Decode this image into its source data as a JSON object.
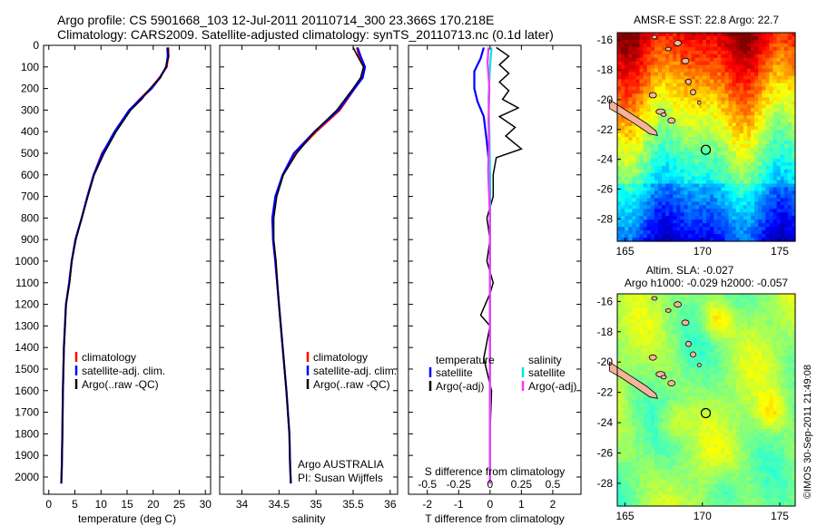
{
  "title_line1": "Argo profile: CS 5901668_103 12-Jul-2011 20110714_300 23.366S 170.218E",
  "title_line2": "Climatology: CARS2009. Satellite-adjusted climatology: synTS_20110713.nc (0.1d later)",
  "credit": "©IMOS 30-Sep-2011 21:49:08",
  "colors": {
    "climatology": "#ff0000",
    "satellite": "#0000ff",
    "argo": "#000000",
    "sat_salinity": "#00e5e5",
    "argo_salinity": "#ff33ff"
  },
  "chart_data": [
    {
      "type": "line",
      "name": "temperature",
      "xlabel": "temperature (deg C)",
      "xlim": [
        -1,
        31
      ],
      "ylim": [
        2080,
        0
      ],
      "xticks": [
        0,
        5,
        10,
        15,
        20,
        25,
        30
      ],
      "xtick_labels": [
        "0",
        "5",
        "10",
        "15",
        "20",
        "25",
        "30"
      ],
      "yticks": [
        0,
        100,
        200,
        300,
        400,
        500,
        600,
        700,
        800,
        900,
        1000,
        1100,
        1200,
        1300,
        1400,
        1500,
        1600,
        1700,
        1800,
        1900,
        2000
      ],
      "ytick_labels": [
        "0",
        "100",
        "200",
        "300",
        "400",
        "500",
        "600",
        "700",
        "800",
        "900",
        "1000",
        "1100",
        "1200",
        "1300",
        "1400",
        "1500",
        "1600",
        "1700",
        "1800",
        "1900",
        "2000"
      ],
      "legend": [
        "climatology",
        "satellite-adj. clim.",
        "Argo(..raw -QC)"
      ],
      "series": [
        {
          "name": "climatology",
          "color": "#ff0000",
          "x": [
            22.9,
            22.9,
            22.6,
            21.2,
            19.5,
            17.4,
            15.5,
            12.8,
            10.2,
            8.6,
            7.4,
            6.3,
            5.1,
            4.4,
            3.9,
            3.3,
            2.9,
            2.7,
            2.6,
            2.5,
            2.4
          ],
          "y": [
            10,
            50,
            100,
            150,
            200,
            250,
            300,
            400,
            500,
            600,
            700,
            800,
            900,
            1000,
            1100,
            1200,
            1400,
            1600,
            1800,
            1950,
            2030
          ]
        },
        {
          "name": "satellite-adj. clim.",
          "color": "#0000ff",
          "x": [
            22.7,
            22.8,
            22.5,
            21.3,
            19.7,
            17.5,
            15.4,
            12.6,
            10.3,
            8.6,
            7.4,
            6.3,
            5.1,
            4.4,
            3.9,
            3.3,
            2.9,
            2.7,
            2.6,
            2.5,
            2.4
          ],
          "y": [
            10,
            50,
            100,
            150,
            200,
            250,
            300,
            400,
            500,
            600,
            700,
            800,
            900,
            1000,
            1100,
            1200,
            1400,
            1600,
            1800,
            1950,
            2030
          ]
        },
        {
          "name": "Argo(..raw -QC)",
          "color": "#000000",
          "x": [
            22.8,
            23.0,
            22.4,
            21.4,
            19.4,
            17.8,
            15.7,
            12.9,
            10.6,
            8.7,
            7.5,
            6.3,
            5.2,
            4.4,
            4.0,
            3.3,
            2.9,
            2.7,
            2.6,
            2.5,
            2.4
          ],
          "y": [
            10,
            50,
            100,
            150,
            200,
            250,
            300,
            400,
            500,
            600,
            700,
            800,
            900,
            1000,
            1100,
            1200,
            1400,
            1600,
            1800,
            1950,
            2030
          ]
        }
      ]
    },
    {
      "type": "line",
      "name": "salinity",
      "xlabel": "salinity",
      "xlim": [
        33.7,
        36.1
      ],
      "ylim": [
        2080,
        0
      ],
      "xticks": [
        34,
        34.5,
        35,
        35.5,
        36
      ],
      "xtick_labels": [
        "34",
        "34.5",
        "35",
        "35.5",
        "36"
      ],
      "legend": [
        "climatology",
        "satellite-adj. clim.",
        "Argo(..raw -QC)"
      ],
      "annotation": [
        "Argo AUSTRALIA",
        "PI: Susan Wijffels"
      ],
      "series": [
        {
          "name": "climatology",
          "color": "#ff0000",
          "x": [
            35.55,
            35.58,
            35.65,
            35.62,
            35.52,
            35.32,
            35.0,
            34.72,
            34.55,
            34.46,
            34.42,
            34.42,
            34.45,
            34.5,
            34.55,
            34.6,
            34.64,
            34.65,
            34.66
          ],
          "y": [
            10,
            50,
            100,
            150,
            200,
            300,
            400,
            500,
            600,
            700,
            800,
            900,
            1000,
            1200,
            1400,
            1600,
            1800,
            1950,
            2030
          ]
        },
        {
          "name": "satellite-adj. clim.",
          "color": "#0000ff",
          "x": [
            35.56,
            35.6,
            35.66,
            35.63,
            35.52,
            35.3,
            34.98,
            34.7,
            34.55,
            34.45,
            34.41,
            34.42,
            34.45,
            34.5,
            34.55,
            34.6,
            34.64,
            34.65,
            34.66
          ],
          "y": [
            10,
            50,
            100,
            150,
            200,
            300,
            400,
            500,
            600,
            700,
            800,
            900,
            1000,
            1200,
            1400,
            1600,
            1800,
            1950,
            2030
          ]
        },
        {
          "name": "Argo(..raw -QC)",
          "color": "#000000",
          "x": [
            35.5,
            35.56,
            35.64,
            35.6,
            35.5,
            35.28,
            34.98,
            34.74,
            34.56,
            34.47,
            34.43,
            34.43,
            34.46,
            34.5,
            34.55,
            34.6,
            34.64,
            34.65,
            34.66
          ],
          "y": [
            10,
            50,
            100,
            150,
            200,
            300,
            400,
            500,
            600,
            700,
            800,
            900,
            1000,
            1200,
            1400,
            1600,
            1800,
            1950,
            2030
          ]
        }
      ]
    },
    {
      "type": "line",
      "name": "difference",
      "xlabel": "T difference from climatology",
      "xlabel_top": "S difference from climatology",
      "xlim": [
        -2.6,
        2.9
      ],
      "ylim": [
        2080,
        0
      ],
      "xticks": [
        -2,
        -1,
        0,
        1,
        2
      ],
      "xtick_labels": [
        "-2",
        "-1",
        "0",
        "1",
        "2"
      ],
      "sticks": [
        -0.5,
        -0.25,
        0,
        0.25,
        0.5
      ],
      "stick_labels": [
        "-0.5",
        "-0.25",
        "0",
        "0.25",
        "0.5"
      ],
      "legend_titles": [
        "temperature",
        "salinity"
      ],
      "legend": [
        "satellite",
        "Argo(-adj)",
        "satellite",
        "Argo(-adj)"
      ],
      "series": [
        {
          "name": "T satellite",
          "color": "#0000ff",
          "x": [
            -0.2,
            -0.3,
            -0.5,
            -0.5,
            -0.4,
            -0.2,
            -0.1,
            0.0,
            0.0,
            0.0,
            0.0,
            0.0,
            0.0
          ],
          "y": [
            10,
            60,
            120,
            200,
            260,
            330,
            450,
            600,
            800,
            1000,
            1400,
            1800,
            2030
          ]
        },
        {
          "name": "T Argo(-adj)",
          "color": "#000000",
          "x": [
            0.2,
            0.6,
            0.3,
            0.6,
            0.3,
            0.6,
            0.4,
            0.9,
            0.3,
            0.8,
            0.5,
            1.0,
            0.2,
            0.1,
            0.1,
            -0.1,
            0.0,
            -0.1,
            0.1,
            0.0,
            -0.3,
            0.0,
            -0.2,
            0.05,
            0.0,
            0.0
          ],
          "y": [
            10,
            50,
            90,
            130,
            170,
            210,
            250,
            290,
            330,
            380,
            420,
            480,
            520,
            600,
            700,
            800,
            900,
            1000,
            1100,
            1150,
            1250,
            1300,
            1450,
            1600,
            1800,
            2030
          ]
        },
        {
          "name": "S satellite",
          "color": "#00e5e5",
          "x": [
            0.05,
            0.0,
            -0.05,
            -0.02,
            0.0,
            0.0,
            0.0,
            0.0,
            0.0
          ],
          "y": [
            10,
            100,
            250,
            400,
            600,
            800,
            1200,
            1600,
            2030
          ]
        },
        {
          "name": "S Argo(-adj)",
          "color": "#ff33ff",
          "x": [
            -0.05,
            -0.08,
            -0.02,
            -0.05,
            -0.03,
            -0.06,
            0.0,
            0.0,
            0.0
          ],
          "y": [
            10,
            80,
            200,
            350,
            450,
            580,
            800,
            1200,
            2030
          ]
        }
      ]
    },
    {
      "type": "heatmap",
      "name": "sst_map",
      "title": "AMSR-E SST: 22.8 Argo: 22.7",
      "xlim": [
        164.5,
        176
      ],
      "ylim": [
        -29.5,
        -15.5
      ],
      "xticks": [
        165,
        170,
        175
      ],
      "xtick_labels": [
        "165",
        "170",
        "175"
      ],
      "yticks": [
        -16,
        -18,
        -20,
        -22,
        -24,
        -26,
        -28
      ],
      "ytick_labels": [
        "-16",
        "-18",
        "-20",
        "-22",
        "-24",
        "-26",
        "-28"
      ],
      "argo_position": [
        170.218,
        -23.366
      ]
    },
    {
      "type": "heatmap",
      "name": "sla_map",
      "title_line1": "Altim. SLA: -0.027",
      "title_line2": "Argo h1000: -0.029 h2000: -0.057",
      "xlim": [
        164.5,
        176
      ],
      "ylim": [
        -29.5,
        -15.5
      ],
      "xticks": [
        165,
        170,
        175
      ],
      "xtick_labels": [
        "165",
        "170",
        "175"
      ],
      "yticks": [
        -16,
        -18,
        -20,
        -22,
        -24,
        -26,
        -28
      ],
      "ytick_labels": [
        "-16",
        "-18",
        "-20",
        "-22",
        "-24",
        "-26",
        "-28"
      ],
      "argo_position": [
        170.218,
        -23.366
      ]
    }
  ]
}
